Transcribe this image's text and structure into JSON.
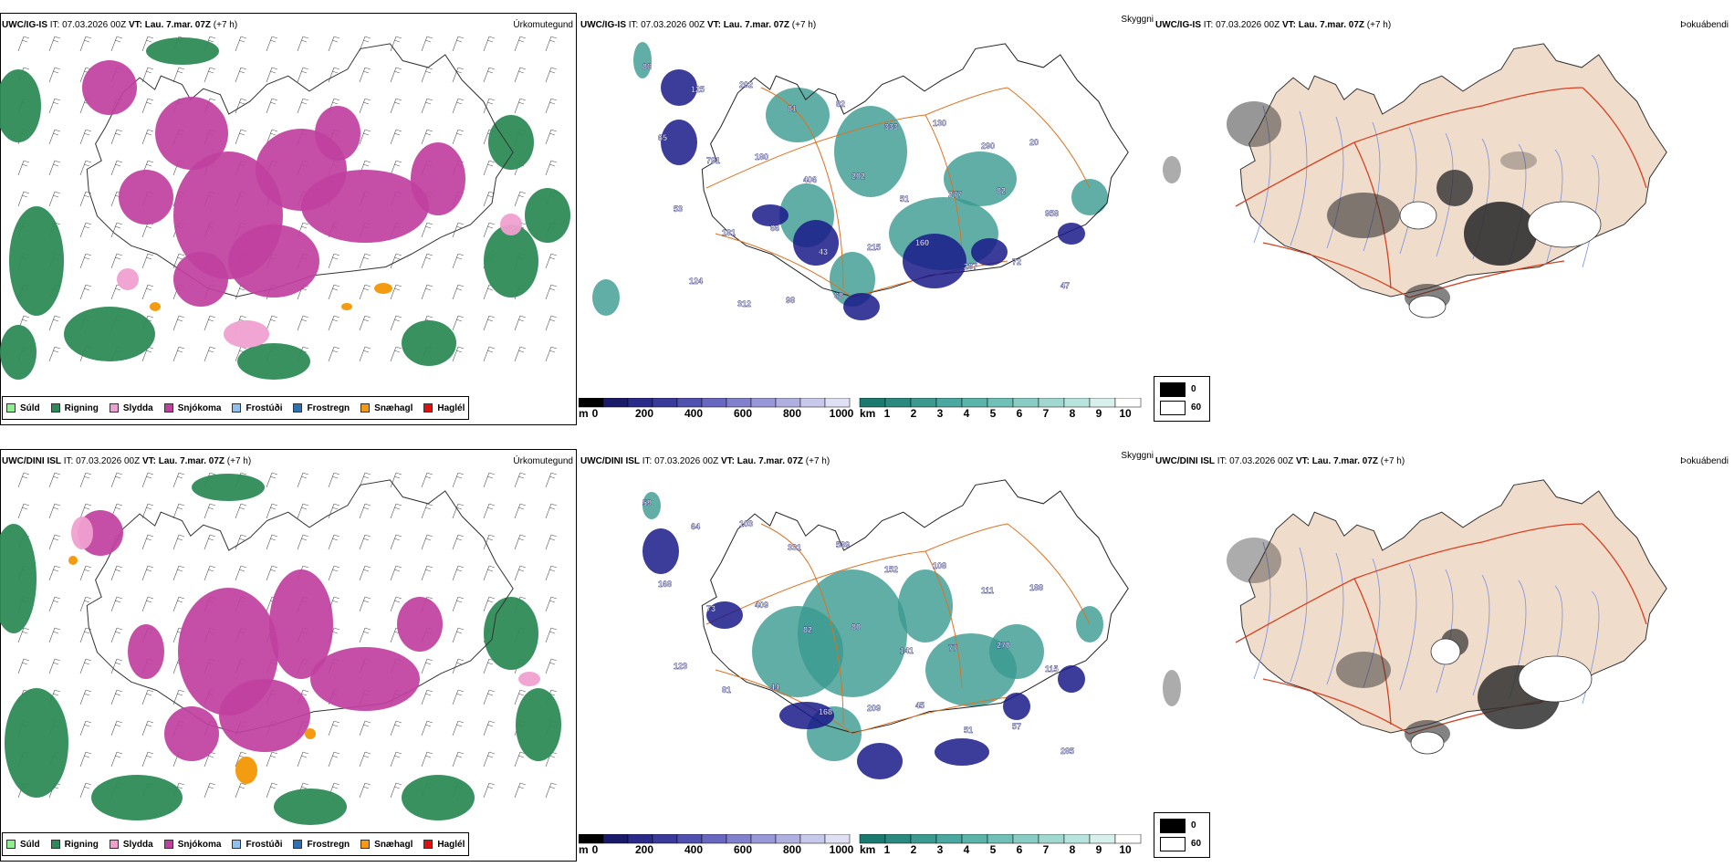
{
  "precip_panel": {
    "field_title": "Úrkomutegund",
    "legend": [
      {
        "label": "Súld",
        "color": "#90ee90"
      },
      {
        "label": "Rigning",
        "color": "#2e8b57"
      },
      {
        "label": "Slydda",
        "color": "#f0a0d0"
      },
      {
        "label": "Snjókoma",
        "color": "#c040a0"
      },
      {
        "label": "Frostúði",
        "color": "#90c0f0"
      },
      {
        "label": "Frostregn",
        "color": "#3070b0"
      },
      {
        "label": "Snæhagl",
        "color": "#f39c12"
      },
      {
        "label": "Haglél",
        "color": "#e01010"
      }
    ]
  },
  "cloud_panel": {
    "field_title": "Skyggni",
    "height_unit": "m",
    "height_ticks": [
      "0",
      "200",
      "400",
      "600",
      "800",
      "1000"
    ],
    "vis_unit": "km",
    "vis_ticks": [
      "1",
      "2",
      "3",
      "4",
      "5",
      "6",
      "7",
      "8",
      "9",
      "10"
    ],
    "fog_legend": [
      "0",
      "60"
    ]
  },
  "fog_panel": {
    "field_title": "Þokuábendi"
  },
  "rows": [
    {
      "model": "UWC/IG-IS",
      "it_label": "IT:",
      "it_value": "07.03.2026 00Z",
      "vt_label": "VT:",
      "vt_value": "Lau. 7.mar. 07Z",
      "lead": "(+7 h)",
      "cloud_labels": [
        "86",
        "125",
        "202",
        "81",
        "82",
        "333",
        "130",
        "290",
        "20",
        "65",
        "791",
        "180",
        "406",
        "202",
        "51",
        "277",
        "82",
        "958",
        "53",
        "181",
        "66",
        "43",
        "215",
        "160",
        "287",
        "72",
        "47",
        "124",
        "312",
        "98",
        "68"
      ]
    },
    {
      "model": "UWC/DINI ISL",
      "it_label": "IT:",
      "it_value": "07.03.2026 00Z",
      "vt_label": "VT:",
      "vt_value": "Lau. 7.mar. 07Z",
      "lead": "(+7 h)",
      "cloud_labels": [
        "59",
        "64",
        "103",
        "331",
        "539",
        "152",
        "108",
        "111",
        "188",
        "168",
        "73",
        "409",
        "82",
        "80",
        "141",
        "77",
        "278",
        "115",
        "123",
        "81",
        "44",
        "168",
        "209",
        "45",
        "51",
        "57",
        "285"
      ]
    }
  ],
  "colors": {
    "rain": "#2e8b57",
    "snow": "#c040a0",
    "sleet": "#f0a0d0",
    "snow_pellets": "#f39c12",
    "cloud_low": "#1a1a8a",
    "vis_teal": "#3a9a90",
    "road": "#e07020",
    "land_fog": "#f0dccb",
    "river": "#7890e0"
  }
}
